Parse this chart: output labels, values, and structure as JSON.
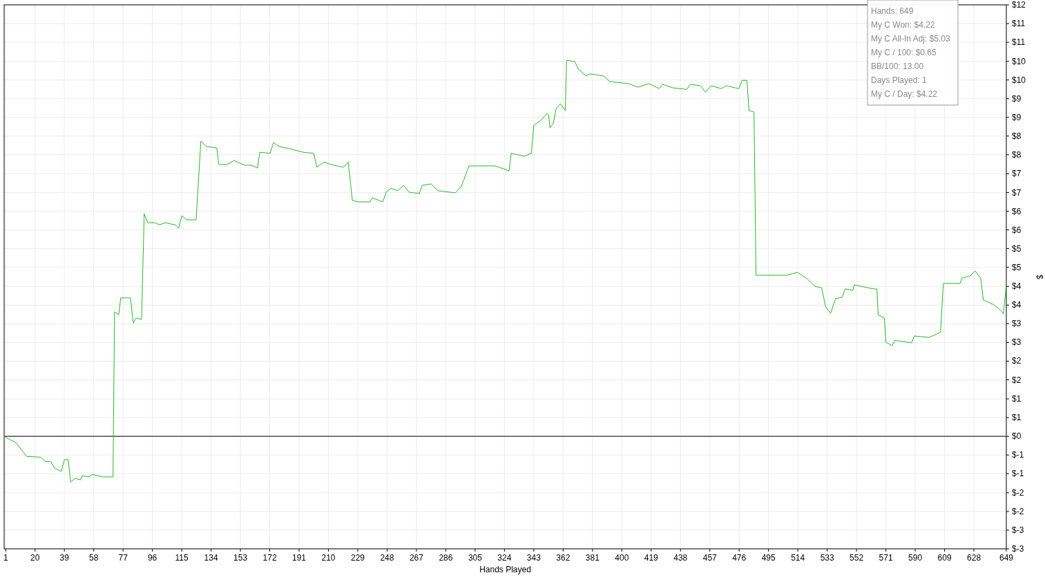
{
  "chart_data": {
    "type": "line",
    "xlabel": "Hands Played",
    "ylabel": "$",
    "xlim": [
      0,
      649
    ],
    "xticks": [
      1,
      20,
      39,
      58,
      77,
      96,
      115,
      134,
      153,
      172,
      191,
      210,
      229,
      248,
      267,
      286,
      305,
      324,
      343,
      362,
      381,
      400,
      419,
      438,
      457,
      476,
      495,
      514,
      533,
      552,
      571,
      590,
      609,
      628,
      649
    ],
    "ylim": [
      -3.13,
      12
    ],
    "yticks": [
      {
        "value": -3.13,
        "label": "$-3"
      },
      {
        "value": -2.61,
        "label": "$-3"
      },
      {
        "value": -2.09,
        "label": "$-2"
      },
      {
        "value": -1.57,
        "label": "$-2"
      },
      {
        "value": -1.04,
        "label": "$-1"
      },
      {
        "value": -0.52,
        "label": "$-1"
      },
      {
        "value": 0,
        "label": "$0"
      },
      {
        "value": 0.52,
        "label": "$1"
      },
      {
        "value": 1.04,
        "label": "$1"
      },
      {
        "value": 1.57,
        "label": "$2"
      },
      {
        "value": 2.09,
        "label": "$2"
      },
      {
        "value": 2.61,
        "label": "$3"
      },
      {
        "value": 3.13,
        "label": "$3"
      },
      {
        "value": 3.65,
        "label": "$4"
      },
      {
        "value": 4.17,
        "label": "$4"
      },
      {
        "value": 4.7,
        "label": "$5"
      },
      {
        "value": 5.22,
        "label": "$5"
      },
      {
        "value": 5.74,
        "label": "$6"
      },
      {
        "value": 6.26,
        "label": "$6"
      },
      {
        "value": 6.78,
        "label": "$7"
      },
      {
        "value": 7.3,
        "label": "$7"
      },
      {
        "value": 7.83,
        "label": "$8"
      },
      {
        "value": 8.35,
        "label": "$8"
      },
      {
        "value": 8.87,
        "label": "$9"
      },
      {
        "value": 9.39,
        "label": "$9"
      },
      {
        "value": 9.91,
        "label": "$10"
      },
      {
        "value": 10.43,
        "label": "$10"
      },
      {
        "value": 10.96,
        "label": "$11"
      },
      {
        "value": 11.48,
        "label": "$11"
      },
      {
        "value": 12,
        "label": "$12"
      }
    ],
    "grid": true,
    "ref_lines": [
      {
        "axis": "y",
        "value": 0,
        "color": "#000000"
      }
    ],
    "annotations": [
      "Hands: 649",
      "My C Won: $4.22",
      "My C All-In Adj: $5.03",
      "My C / 100: $0.65",
      "BB/100: 13.00",
      "Days Played: 1",
      "My C / Day: $4.22"
    ],
    "series": [
      {
        "color": "#22bb22",
        "x": [
          0,
          4.8,
          7.5,
          14.6,
          23.6,
          26.3,
          30.3,
          32.5,
          37,
          39,
          41.5,
          43,
          46,
          49.5,
          50.5,
          55,
          57,
          64,
          70.5,
          71.5,
          74.2,
          75.5,
          81.8,
          83.6,
          85.4,
          89,
          90.7,
          93,
          97.5,
          100.6,
          104.2,
          110.9,
          113,
          115,
          118.5,
          124.3,
          127.4,
          131,
          137.7,
          139,
          144.5,
          149,
          155.6,
          160,
          164.1,
          165.5,
          172.2,
          174.4,
          178,
          184.7,
          193.7,
          200.4,
          202.6,
          207,
          211.6,
          219.7,
          222.8,
          225.5,
          229.5,
          237,
          238.4,
          245.2,
          247.4,
          250.5,
          255,
          258.6,
          262.2,
          268.9,
          270.7,
          276.5,
          281,
          292.2,
          296,
          301,
          305.6,
          317.7,
          323.5,
          327,
          328.4,
          336.9,
          341.4,
          343,
          347.2,
          351.6,
          352.6,
          353.5,
          355.7,
          357.5,
          360.2,
          363.4,
          364.2,
          369.6,
          371.8,
          377,
          379.3,
          388.3,
          392,
          399.6,
          404,
          410.7,
          417.5,
          424.2,
          426.4,
          433.2,
          442,
          444.4,
          451,
          454.2,
          457.8,
          464.5,
          467.6,
          475.7,
          477.9,
          481,
          482.4,
          485.6,
          486.9,
          498,
          507,
          513.7,
          520.4,
          525,
          529.4,
          532,
          535.2,
          538.4,
          542.8,
          544.6,
          549.6,
          550.5,
          563,
          565.2,
          566,
          570,
          571,
          575,
          576.8,
          587.6,
          589.4,
          598.8,
          603.3,
          606.4,
          608.2,
          619,
          620.3,
          625.7,
          628.8,
          632.4,
          634.1,
          640.4,
          646,
          647.1,
          649
        ],
        "values": [
          0,
          -0.12,
          -0.17,
          -0.56,
          -0.58,
          -0.69,
          -0.71,
          -0.88,
          -0.98,
          -0.65,
          -0.65,
          -1.27,
          -1.17,
          -1.21,
          -1.1,
          -1.13,
          -1.06,
          -1.13,
          -1.13,
          3.46,
          3.38,
          3.85,
          3.85,
          3.15,
          3.29,
          3.25,
          6.19,
          5.94,
          5.94,
          5.88,
          5.94,
          5.88,
          5.79,
          6.13,
          6.02,
          6.02,
          8.21,
          8.06,
          8.02,
          7.56,
          7.56,
          7.67,
          7.54,
          7.54,
          7.46,
          7.9,
          7.87,
          8.17,
          8.06,
          8.0,
          7.9,
          7.87,
          7.48,
          7.63,
          7.56,
          7.48,
          7.63,
          6.56,
          6.52,
          6.52,
          6.63,
          6.52,
          6.79,
          6.9,
          6.83,
          6.98,
          6.79,
          6.75,
          6.98,
          7.02,
          6.83,
          6.77,
          6.94,
          7.52,
          7.52,
          7.52,
          7.44,
          7.38,
          7.87,
          7.79,
          7.87,
          8.65,
          8.77,
          8.98,
          8.94,
          8.58,
          8.71,
          9.12,
          9.25,
          9.06,
          10.46,
          10.42,
          10.21,
          10.02,
          10.08,
          10.02,
          9.87,
          9.83,
          9.81,
          9.71,
          9.81,
          9.67,
          9.79,
          9.69,
          9.65,
          9.79,
          9.75,
          9.57,
          9.75,
          9.67,
          9.75,
          9.67,
          9.9,
          9.9,
          9.06,
          9.02,
          4.48,
          4.48,
          4.48,
          4.56,
          4.37,
          4.17,
          4.13,
          3.6,
          3.42,
          3.83,
          3.87,
          4.1,
          4.06,
          4.21,
          4.1,
          4.1,
          3.38,
          3.29,
          2.62,
          2.52,
          2.67,
          2.6,
          2.79,
          2.75,
          2.83,
          2.9,
          4.25,
          4.25,
          4.4,
          4.46,
          4.6,
          4.4,
          3.79,
          3.67,
          3.48,
          3.4,
          4.22
        ]
      }
    ]
  }
}
